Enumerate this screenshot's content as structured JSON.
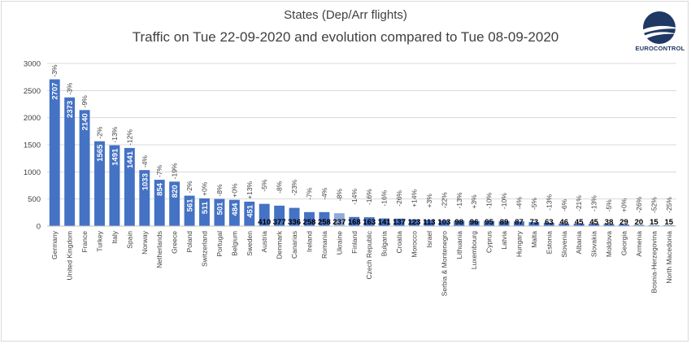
{
  "header": {
    "title": "States (Dep/Arr flights)",
    "subtitle": "Traffic on Tue 22-09-2020 and evolution compared to Tue 08-09-2020",
    "logo_text": "EUROCONTROL"
  },
  "colors": {
    "bar_main": "#4472c4",
    "bar_light": "#8faadc",
    "grid": "#d9d9d9",
    "text": "#404040",
    "logo": "#1f3864"
  },
  "chart_data": {
    "type": "bar",
    "title": "States (Dep/Arr flights)",
    "subtitle": "Traffic on Tue 22-09-2020 and evolution compared to Tue 08-09-2020",
    "ylim": [
      0,
      3000
    ],
    "yticks": [
      0,
      500,
      1000,
      1500,
      2000,
      2500,
      3000
    ],
    "grid": true,
    "categories": [
      "Germany",
      "United Kingdom",
      "France",
      "Turkey",
      "Italy",
      "Spain",
      "Norway",
      "Netherlands",
      "Greece",
      "Poland",
      "Switzerland",
      "Portugal",
      "Belgium",
      "Sweden",
      "Austria",
      "Denmark",
      "Canarias",
      "Ireland",
      "Romania",
      "Ukraine",
      "Finland",
      "Czech Republic",
      "Bulgaria",
      "Croatia",
      "Morocco",
      "Israel",
      "Serbia & Montenegro",
      "Lithuania",
      "Luxembourg",
      "Cyprus",
      "Latvia",
      "Hungary",
      "Malta",
      "Estonia",
      "Slovenia",
      "Albania",
      "Slovakia",
      "Moldova",
      "Georgia",
      "Armenia",
      "Bosnia-Herzegovina",
      "North Macedonia"
    ],
    "values": [
      2707,
      2373,
      2140,
      1565,
      1491,
      1441,
      1033,
      854,
      820,
      561,
      511,
      501,
      484,
      451,
      410,
      377,
      336,
      258,
      258,
      237,
      168,
      163,
      141,
      137,
      123,
      113,
      103,
      98,
      96,
      95,
      89,
      87,
      73,
      63,
      46,
      45,
      45,
      38,
      29,
      20,
      15,
      15
    ],
    "changes": [
      "-3%",
      "-3%",
      "-9%",
      "-2%",
      "-13%",
      "-12%",
      "-4%",
      "-7%",
      "-19%",
      "-2%",
      "+0%",
      "-8%",
      "+0%",
      "+13%",
      "-5%",
      "-8%",
      "-23%",
      "-7%",
      "-4%",
      "-8%",
      "-14%",
      "-16%",
      "-16%",
      "-26%",
      "+14%",
      "+3%",
      "-22%",
      "-13%",
      "+3%",
      "-10%",
      "-10%",
      "-4%",
      "-5%",
      "-13%",
      "-6%",
      "-21%",
      "-13%",
      "-5%",
      "+0%",
      "-26%",
      "-52%",
      "-25%"
    ],
    "light_bar_index": 19
  }
}
